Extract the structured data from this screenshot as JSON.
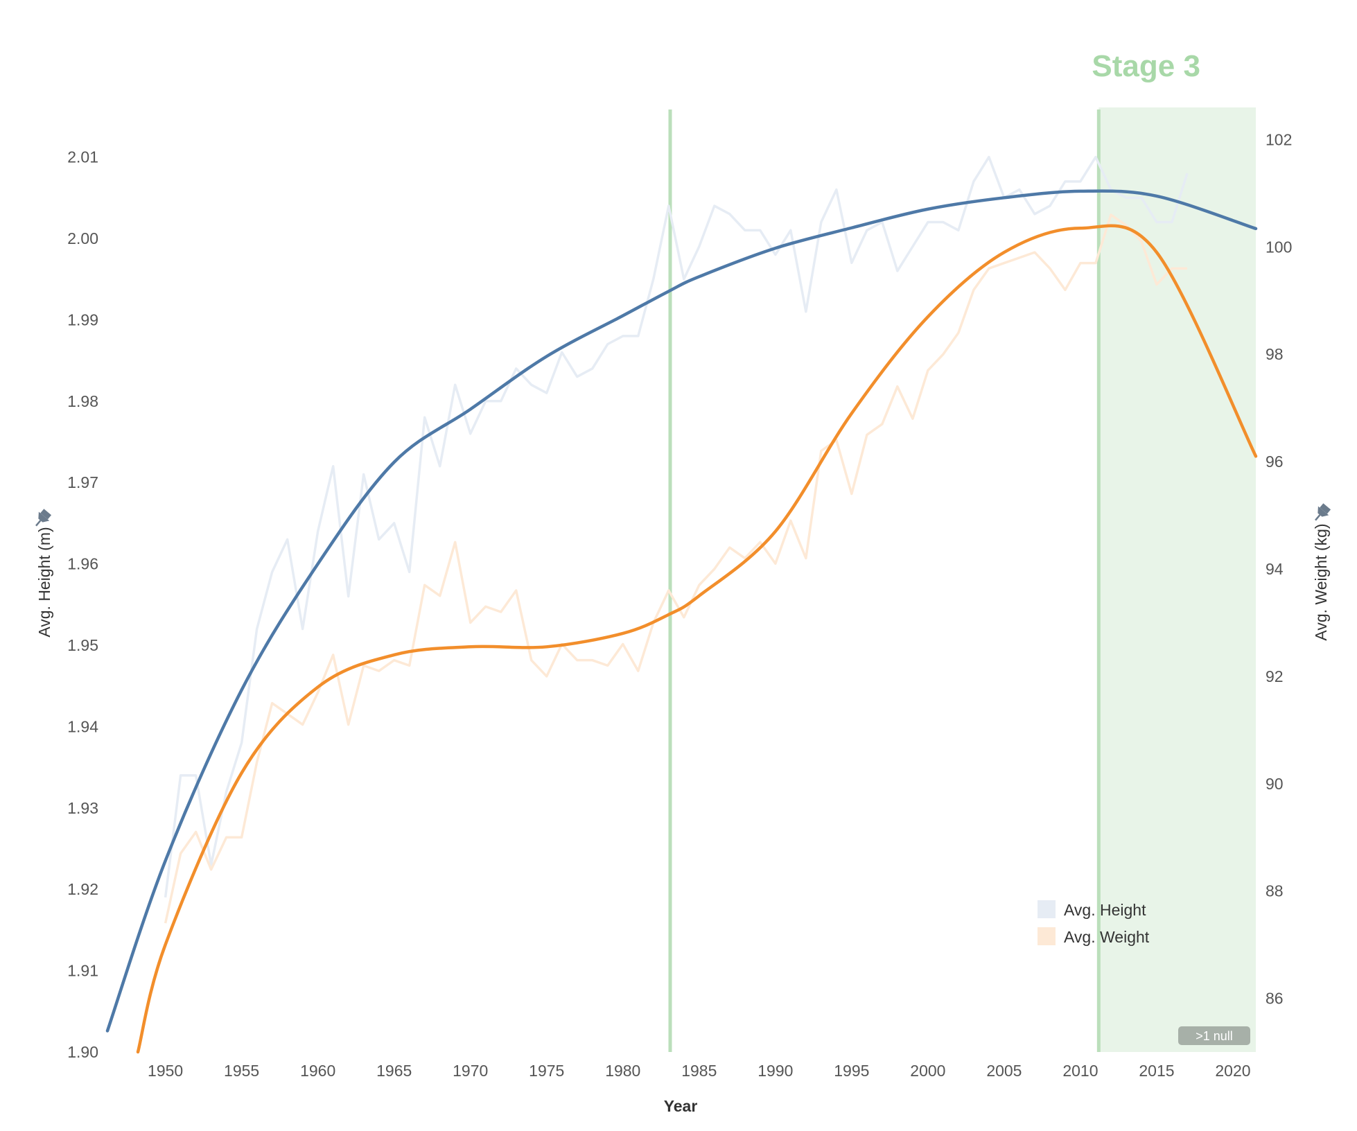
{
  "chart_data": {
    "type": "line",
    "title": "",
    "xlabel": "Year",
    "ylabel_left": "Avg. Height (m)",
    "ylabel_right": "Avg. Weight (kg)",
    "xlim": [
      1946.2,
      2021.5
    ],
    "ylim_left": [
      1.9,
      2.0161
    ],
    "ylim_right": [
      85,
      102.6
    ],
    "x_ticks": [
      1950,
      1955,
      1960,
      1965,
      1970,
      1975,
      1980,
      1985,
      1990,
      1995,
      2000,
      2005,
      2010,
      2015,
      2020
    ],
    "y_left_ticks": [
      "1.90",
      "1.91",
      "1.92",
      "1.93",
      "1.94",
      "1.95",
      "1.96",
      "1.97",
      "1.98",
      "1.99",
      "2.00",
      "2.01"
    ],
    "y_right_ticks": [
      "86",
      "88",
      "90",
      "92",
      "94",
      "96",
      "98",
      "100",
      "102"
    ],
    "grid": false,
    "legend_position": "bottom-right",
    "stage": {
      "label": "Stage 3",
      "start": 2011.2,
      "end": 2021.5,
      "lines": [
        1983.1,
        2011.2
      ]
    },
    "null_badge": ">1 null",
    "colors": {
      "height_raw": "#e6ecf4",
      "weight_raw": "#fde9d6",
      "height_trend": "#4e79a7",
      "weight_trend": "#f28e2b",
      "stage": "#bbdfbb",
      "stage_fill": "#e8f4e8",
      "stage_text": "#a8d8a8",
      "null_badge": "#a7b0a8"
    },
    "series": [
      {
        "name": "Avg. Height",
        "axis": "left",
        "kind": "raw",
        "x": [
          1950,
          1951,
          1952,
          1953,
          1954,
          1955,
          1956,
          1957,
          1958,
          1959,
          1960,
          1961,
          1962,
          1963,
          1964,
          1965,
          1966,
          1967,
          1968,
          1969,
          1970,
          1971,
          1972,
          1973,
          1974,
          1975,
          1976,
          1977,
          1978,
          1979,
          1980,
          1981,
          1982,
          1983,
          1984,
          1985,
          1986,
          1987,
          1988,
          1989,
          1990,
          1991,
          1992,
          1993,
          1994,
          1995,
          1996,
          1997,
          1998,
          1999,
          2000,
          2001,
          2002,
          2003,
          2004,
          2005,
          2006,
          2007,
          2008,
          2009,
          2010,
          2011,
          2012,
          2013,
          2014,
          2015,
          2016,
          2017
        ],
        "values": [
          1.919,
          1.934,
          1.934,
          1.923,
          1.932,
          1.938,
          1.952,
          1.959,
          1.963,
          1.952,
          1.964,
          1.972,
          1.956,
          1.971,
          1.963,
          1.965,
          1.959,
          1.978,
          1.972,
          1.982,
          1.976,
          1.98,
          1.98,
          1.984,
          1.982,
          1.981,
          1.986,
          1.983,
          1.984,
          1.987,
          1.988,
          1.988,
          1.995,
          2.004,
          1.995,
          1.999,
          2.004,
          2.003,
          2.001,
          2.001,
          1.998,
          2.001,
          1.991,
          2.002,
          2.006,
          1.997,
          2.001,
          2.002,
          1.996,
          1.999,
          2.002,
          2.002,
          2.001,
          2.007,
          2.01,
          2.005,
          2.006,
          2.003,
          2.004,
          2.007,
          2.007,
          2.01,
          2.006,
          2.005,
          2.005,
          2.002,
          2.002,
          2.008
        ]
      },
      {
        "name": "Avg. Weight",
        "axis": "right",
        "kind": "raw",
        "x": [
          1950,
          1951,
          1952,
          1953,
          1954,
          1955,
          1956,
          1957,
          1958,
          1959,
          1960,
          1961,
          1962,
          1963,
          1964,
          1965,
          1966,
          1967,
          1968,
          1969,
          1970,
          1971,
          1972,
          1973,
          1974,
          1975,
          1976,
          1977,
          1978,
          1979,
          1980,
          1981,
          1982,
          1983,
          1984,
          1985,
          1986,
          1987,
          1988,
          1989,
          1990,
          1991,
          1992,
          1993,
          1994,
          1995,
          1996,
          1997,
          1998,
          1999,
          2000,
          2001,
          2002,
          2003,
          2004,
          2005,
          2006,
          2007,
          2008,
          2009,
          2010,
          2011,
          2012,
          2013,
          2014,
          2015,
          2016,
          2017
        ],
        "values": [
          87.4,
          88.7,
          89.1,
          88.4,
          89.0,
          89.0,
          90.4,
          91.5,
          91.3,
          91.1,
          91.7,
          92.4,
          91.1,
          92.2,
          92.1,
          92.3,
          92.2,
          93.7,
          93.5,
          94.5,
          93.0,
          93.3,
          93.2,
          93.6,
          92.3,
          92.0,
          92.6,
          92.3,
          92.3,
          92.2,
          92.6,
          92.1,
          93.0,
          93.6,
          93.1,
          93.7,
          94.0,
          94.4,
          94.2,
          94.5,
          94.1,
          94.9,
          94.2,
          96.2,
          96.4,
          95.4,
          96.5,
          96.7,
          97.4,
          96.8,
          97.7,
          98.0,
          98.4,
          99.2,
          99.6,
          99.7,
          99.8,
          99.9,
          99.6,
          99.2,
          99.7,
          99.7,
          100.6,
          100.4,
          100.1,
          99.3,
          99.6,
          99.6
        ]
      },
      {
        "name": "Avg. Height trend",
        "axis": "left",
        "kind": "trend",
        "x": [
          1946.2,
          1950,
          1955,
          1960,
          1965,
          1970,
          1975,
          1980,
          1983,
          1985,
          1990,
          1995,
          2000,
          2005,
          2010,
          2015,
          2021.5
        ],
        "values": [
          1.9026,
          1.9235,
          1.9445,
          1.96,
          1.9725,
          1.979,
          1.9855,
          1.9905,
          1.9935,
          1.9953,
          1.9988,
          2.0013,
          2.0036,
          2.005,
          2.0058,
          2.0052,
          2.0012
        ]
      },
      {
        "name": "Avg. Weight trend",
        "axis": "right",
        "kind": "trend",
        "x": [
          1948.2,
          1950,
          1955,
          1960,
          1965,
          1970,
          1975,
          1980,
          1983,
          1985,
          1990,
          1995,
          2000,
          2005,
          2010,
          2015,
          2021.5
        ],
        "values": [
          85.0,
          87.0,
          90.2,
          91.8,
          92.4,
          92.55,
          92.55,
          92.8,
          93.15,
          93.5,
          94.7,
          96.9,
          98.7,
          99.9,
          100.35,
          99.9,
          96.1
        ]
      }
    ]
  }
}
